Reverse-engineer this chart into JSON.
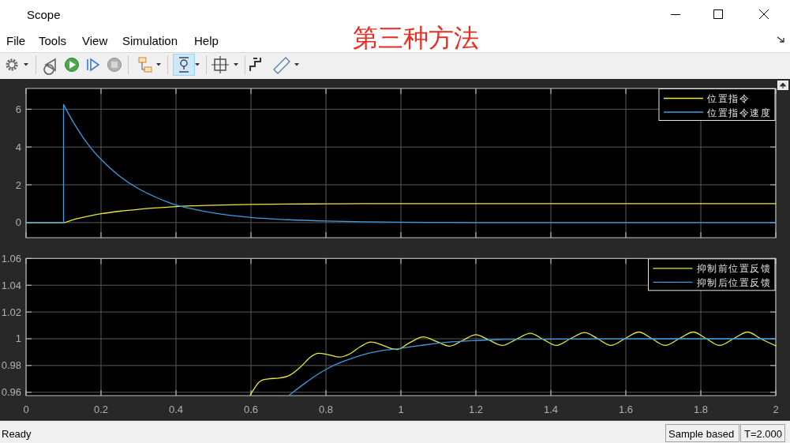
{
  "chart_data": [
    {
      "type": "other",
      "title": "第三种方法",
      "annotations": [
        "Scope",
        "File",
        "Tools",
        "View",
        "Simulation",
        "Help",
        "Ready",
        "Sample based",
        "T=2.000"
      ]
    },
    {
      "type": "line",
      "xlim": [
        0,
        2
      ],
      "ylim": [
        -0.8,
        7.1
      ],
      "xticks": [
        0,
        0.2,
        0.4,
        0.6,
        0.8,
        1,
        1.2,
        1.4,
        1.6,
        1.8,
        2
      ],
      "yticks": [
        0,
        2,
        4,
        6
      ],
      "tick_labels": "y",
      "grid": true,
      "legend": "top right",
      "series": [
        {
          "name": "位置指令",
          "color": "#e8e83c",
          "x": [
            0,
            0.1,
            0.125,
            0.15,
            0.175,
            0.2,
            0.25,
            0.3,
            0.35,
            0.4,
            0.45,
            0.5,
            0.6,
            0.7,
            0.8,
            0.9,
            1,
            1.2,
            1.5,
            2
          ],
          "values": [
            0,
            0,
            0.15,
            0.27,
            0.38,
            0.47,
            0.6,
            0.7,
            0.78,
            0.85,
            0.89,
            0.92,
            0.96,
            0.98,
            0.99,
            1,
            1,
            1,
            1,
            1
          ]
        },
        {
          "name": "位置指令速度",
          "color": "#3d9be0",
          "x": [
            0,
            0.1,
            0.1,
            0.125,
            0.15,
            0.175,
            0.2,
            0.25,
            0.3,
            0.35,
            0.4,
            0.45,
            0.5,
            0.6,
            0.7,
            0.8,
            0.9,
            1,
            1.1,
            1.2,
            1.5,
            2
          ],
          "values": [
            0,
            0,
            6.25,
            5.35,
            4.57,
            3.9,
            3.35,
            2.45,
            1.79,
            1.31,
            0.93,
            0.7,
            0.51,
            0.27,
            0.15,
            0.08,
            0.04,
            0.02,
            0.01,
            0,
            0,
            0
          ]
        }
      ]
    },
    {
      "type": "line",
      "xlim": [
        0,
        2
      ],
      "ylim": [
        0.9575,
        1.06
      ],
      "xticks": [
        0,
        0.2,
        0.4,
        0.6,
        0.8,
        1,
        1.2,
        1.4,
        1.6,
        1.8,
        2
      ],
      "yticks": [
        0.96,
        0.98,
        1,
        1.02,
        1.04,
        1.06
      ],
      "grid": true,
      "legend": "top right",
      "series": [
        {
          "name": "抑制前位置反馈",
          "color": "#e8e83c",
          "x": [
            0.598,
            0.622,
            0.646,
            0.674,
            0.7025,
            0.734,
            0.7585,
            0.78,
            0.808,
            0.836,
            0.864,
            0.892,
            0.92,
            0.948,
            0.976,
            0.99,
            1.02,
            1.06,
            1.095,
            1.13,
            1.165,
            1.2,
            1.235,
            1.27,
            1.307,
            1.345,
            1.38,
            1.415,
            1.452,
            1.49,
            1.525,
            1.56,
            1.597,
            1.635,
            1.67,
            1.705,
            1.742,
            1.78,
            1.815,
            1.85,
            1.887,
            1.925,
            1.96,
            2
          ],
          "values": [
            0.958,
            0.9677,
            0.97,
            0.9706,
            0.9726,
            0.9794,
            0.9863,
            0.9892,
            0.988,
            0.9863,
            0.9888,
            0.9941,
            0.9975,
            0.9955,
            0.9925,
            0.992,
            0.9965,
            1.0014,
            0.998,
            0.9945,
            0.9988,
            1.003,
            0.999,
            0.995,
            0.9995,
            1.004,
            0.9995,
            0.995,
            1,
            1.0046,
            1,
            0.995,
            1,
            1.005,
            1,
            0.995,
            1,
            1.005,
            1,
            0.995,
            1,
            1.005,
            1,
            0.9947
          ]
        },
        {
          "name": "抑制后位置反馈",
          "color": "#3d9be0",
          "x": [
            0.7025,
            0.7375,
            0.7726,
            0.808,
            0.842,
            0.878,
            0.913,
            0.948,
            0.983,
            1.053,
            1.1235,
            1.194,
            1.264,
            1.334,
            1.475,
            1.68,
            2
          ],
          "values": [
            0.958,
            0.9654,
            0.9724,
            0.9783,
            0.9826,
            0.9862,
            0.9891,
            0.9911,
            0.9922,
            0.995,
            0.9974,
            0.9986,
            0.9994,
            0.9996,
            0.9998,
            1,
            1
          ]
        }
      ]
    }
  ]
}
